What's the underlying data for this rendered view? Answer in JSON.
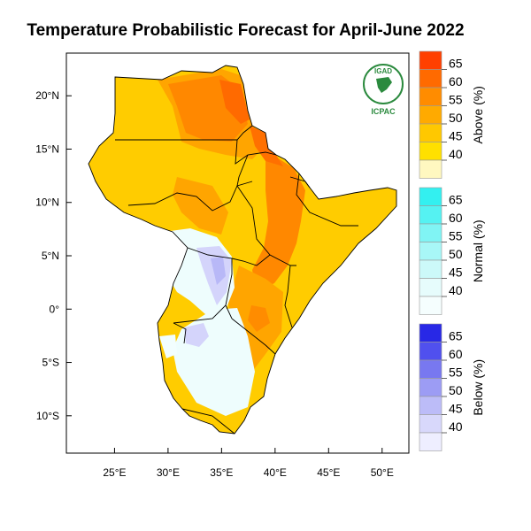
{
  "title": "Temperature Probabilistic Forecast for April-June 2022",
  "logo": {
    "top_text": "IGAD",
    "bottom_text": "ICPAC"
  },
  "axes": {
    "x_ticks": [
      {
        "lon": 25,
        "label": "25°E"
      },
      {
        "lon": 30,
        "label": "30°E"
      },
      {
        "lon": 35,
        "label": "35°E"
      },
      {
        "lon": 40,
        "label": "40°E"
      },
      {
        "lon": 45,
        "label": "45°E"
      },
      {
        "lon": 50,
        "label": "50°E"
      }
    ],
    "y_ticks": [
      {
        "lat": 20,
        "label": "20°N"
      },
      {
        "lat": 15,
        "label": "15°N"
      },
      {
        "lat": 10,
        "label": "10°N"
      },
      {
        "lat": 5,
        "label": "5°N"
      },
      {
        "lat": 0,
        "label": "0°"
      },
      {
        "lat": -5,
        "label": "5°S"
      },
      {
        "lat": -10,
        "label": "10°S"
      }
    ],
    "lon_range": [
      20.5,
      52.5
    ],
    "lat_range": [
      -13.5,
      24
    ]
  },
  "legends": [
    {
      "title": "Above (%)",
      "levels": [
        "65",
        "60",
        "55",
        "50",
        "45",
        "40"
      ],
      "colors": [
        "#ff4000",
        "#ff6a00",
        "#ff8c00",
        "#ffaa00",
        "#ffc800",
        "#ffe000",
        "#fff8c0"
      ]
    },
    {
      "title": "Normal (%)",
      "levels": [
        "65",
        "60",
        "55",
        "50",
        "45",
        "40"
      ],
      "colors": [
        "#33f0f0",
        "#55f2f2",
        "#80f4f4",
        "#a8f7f7",
        "#ccf9f9",
        "#e6fcfc",
        "#f5fefe"
      ]
    },
    {
      "title": "Below (%)",
      "levels": [
        "65",
        "60",
        "55",
        "50",
        "45",
        "40"
      ],
      "colors": [
        "#2828e6",
        "#5050ee",
        "#7878f0",
        "#9c9cf4",
        "#bcbcf8",
        "#d8d8fb",
        "#eeeeff"
      ]
    }
  ]
}
